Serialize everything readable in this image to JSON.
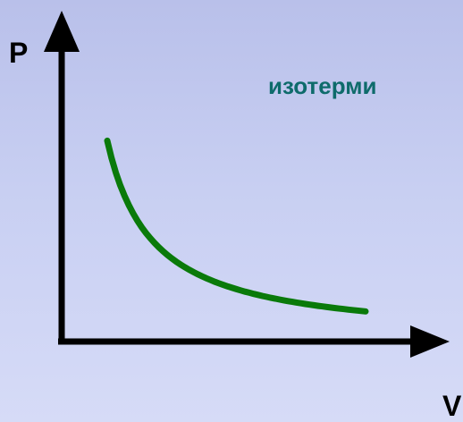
{
  "chart_data": {
    "type": "line",
    "ylabel": "P",
    "xlabel": "V",
    "annotation": "изотерми",
    "grid": false,
    "series": [
      {
        "x": [
          0.15,
          0.2,
          0.3,
          0.4,
          0.5,
          0.6,
          0.7,
          0.8,
          0.9,
          1.0
        ],
        "y": [
          1.0,
          0.75,
          0.5,
          0.375,
          0.3,
          0.25,
          0.214,
          0.1875,
          0.167,
          0.15
        ],
        "color": "#0a7a0a"
      }
    ],
    "xlim": [
      0,
      1.2
    ],
    "ylim": [
      0,
      1.3
    ],
    "axis_color": "#000000",
    "annotation_color": "#0e6b6b"
  }
}
